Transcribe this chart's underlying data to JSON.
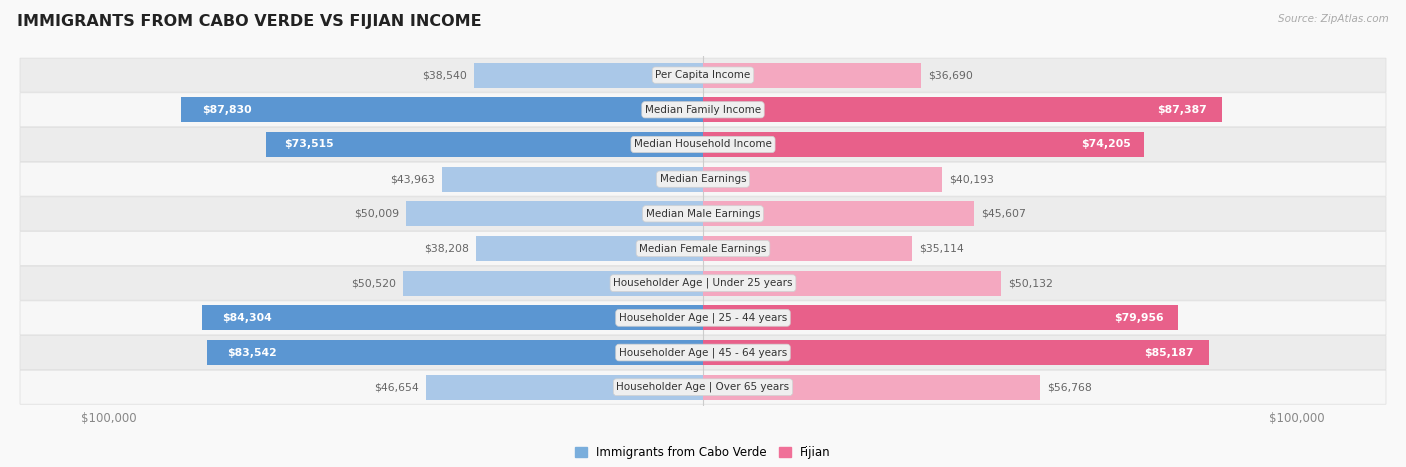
{
  "title": "IMMIGRANTS FROM CABO VERDE VS FIJIAN INCOME",
  "source": "Source: ZipAtlas.com",
  "categories": [
    "Per Capita Income",
    "Median Family Income",
    "Median Household Income",
    "Median Earnings",
    "Median Male Earnings",
    "Median Female Earnings",
    "Householder Age | Under 25 years",
    "Householder Age | 25 - 44 years",
    "Householder Age | 45 - 64 years",
    "Householder Age | Over 65 years"
  ],
  "cabo_verde": [
    38540,
    87830,
    73515,
    43963,
    50009,
    38208,
    50520,
    84304,
    83542,
    46654
  ],
  "fijian": [
    36690,
    87387,
    74205,
    40193,
    45607,
    35114,
    50132,
    79956,
    85187,
    56768
  ],
  "max_val": 100000,
  "cabo_light": "#aac8e8",
  "cabo_dark": "#5b96d2",
  "fijian_light": "#f4a8c0",
  "fijian_dark": "#e8608a",
  "threshold_dark": 0.58,
  "row_colors": [
    "#ececec",
    "#f7f7f7"
  ],
  "bg_color": "#f9f9f9",
  "center_box_bg": "#efefef",
  "center_box_edge": "#d0d0d0",
  "axis_tick_color": "#888888",
  "title_color": "#222222",
  "source_color": "#aaaaaa",
  "label_dark_text": "#ffffff",
  "label_light_text": "#666666",
  "legend_cabo_color": "#7aaedc",
  "legend_fijian_color": "#f07098"
}
